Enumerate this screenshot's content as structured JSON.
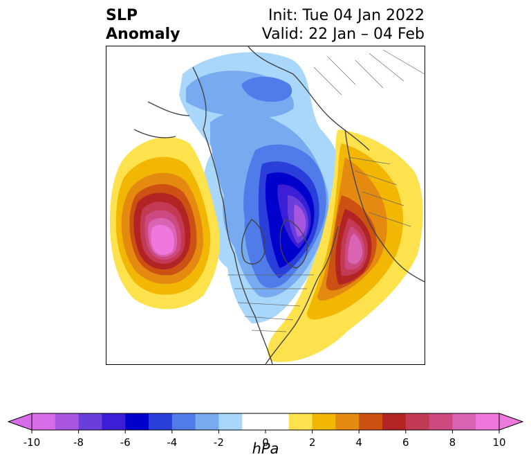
{
  "title": {
    "left_line1": "SLP",
    "left_line2": "Anomaly",
    "right_line1": "Init: Tue 04 Jan 2022",
    "right_line2": "Valid: 22 Jan – 04 Feb"
  },
  "colorbar": {
    "unit_label": "hPa",
    "min": -10,
    "max": 10,
    "step": 1,
    "tick_values": [
      -10,
      -8,
      -6,
      -4,
      -2,
      0,
      2,
      4,
      6,
      8,
      10
    ],
    "tick_labels": [
      "-10",
      "-8",
      "-6",
      "-4",
      "-2",
      "0",
      "2",
      "4",
      "6",
      "8",
      "10"
    ],
    "extend": "both",
    "colors": [
      "#d66ce8",
      "#a855e0",
      "#6a3fd9",
      "#3b1fd6",
      "#0000cc",
      "#2a3fd9",
      "#4f7ce8",
      "#78aaf0",
      "#a9d6fb",
      "#ffffff",
      "#ffffff",
      "#fde14d",
      "#f2b705",
      "#e58a10",
      "#cc5214",
      "#b22424",
      "#c23a54",
      "#cc4a80",
      "#da64b4",
      "#ee78dc"
    ],
    "under_color": "#d66ce8",
    "over_color": "#ee78dc"
  },
  "map": {
    "projection": "north polar",
    "field": "SLP anomaly"
  }
}
